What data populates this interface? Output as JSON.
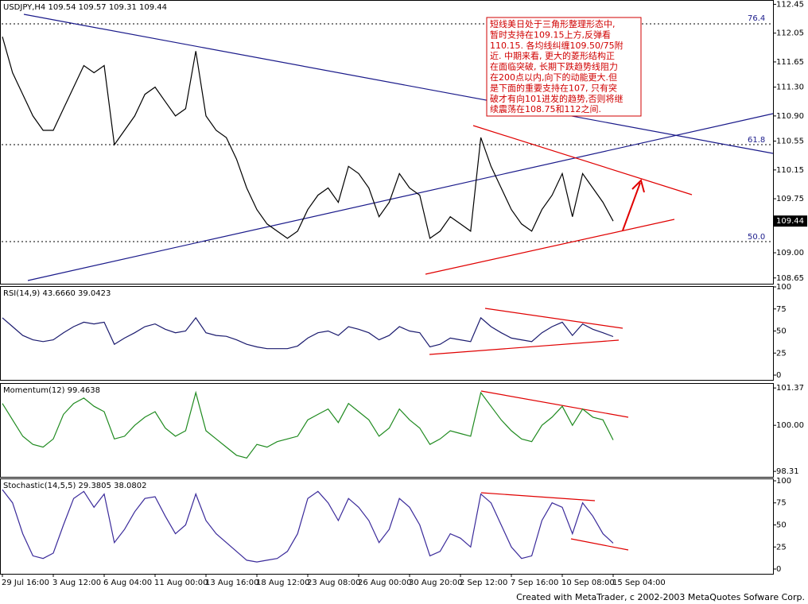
{
  "chart_data": [
    {
      "type": "line",
      "label": "USDJPY,H4  109.54 109.57 109.31 109.44",
      "color": "#000000",
      "ylim": [
        108.57,
        112.51
      ],
      "yticks": [
        112.45,
        112.05,
        111.65,
        {
          "value": 111.3,
          "label": "111.30"
        },
        {
          "value": 110.9,
          "label": "110.90"
        },
        110.55,
        110.15,
        109.75,
        {
          "value": 109.0,
          "label": "109.00"
        },
        108.65
      ],
      "values": [
        112.0,
        111.5,
        111.2,
        110.9,
        110.7,
        110.7,
        111.0,
        111.3,
        111.6,
        111.5,
        111.6,
        110.5,
        110.7,
        110.9,
        111.2,
        111.3,
        111.1,
        110.9,
        111.0,
        111.8,
        110.9,
        110.7,
        110.6,
        110.3,
        109.9,
        109.6,
        109.4,
        109.3,
        109.2,
        109.3,
        109.6,
        109.8,
        109.9,
        109.7,
        110.2,
        110.1,
        109.9,
        109.5,
        109.7,
        110.1,
        109.9,
        109.8,
        109.2,
        109.3,
        109.5,
        109.4,
        109.3,
        110.6,
        110.2,
        109.9,
        109.6,
        109.4,
        109.3,
        109.6,
        109.8,
        110.1,
        109.5,
        110.1,
        109.9,
        109.7,
        109.44
      ]
    },
    {
      "type": "line",
      "label": "RSI(14,9)  43.6660  39.0423",
      "color": "#1a1a6e",
      "ylim": [
        -5.4,
        100.9
      ],
      "yticks": [
        100,
        75,
        50,
        25,
        0
      ],
      "values": [
        65,
        55,
        45,
        40,
        38,
        40,
        48,
        55,
        60,
        58,
        60,
        35,
        42,
        48,
        55,
        58,
        52,
        48,
        50,
        65,
        48,
        45,
        44,
        40,
        35,
        32,
        30,
        30,
        30,
        33,
        42,
        48,
        50,
        45,
        55,
        52,
        48,
        40,
        45,
        55,
        50,
        48,
        32,
        35,
        42,
        40,
        38,
        65,
        55,
        48,
        42,
        40,
        38,
        48,
        55,
        60,
        45,
        58,
        52,
        48,
        43.666
      ]
    },
    {
      "type": "line",
      "label": "Momentum(12)  99.4638",
      "color": "#1f8a1f",
      "ylim": [
        98.11,
        101.55
      ],
      "yticks": [
        101.37,
        {
          "value": 100,
          "label": "100.00"
        },
        98.31
      ],
      "values": [
        100.8,
        100.2,
        99.6,
        99.3,
        99.2,
        99.5,
        100.4,
        100.8,
        101.0,
        100.7,
        100.5,
        99.5,
        99.6,
        100.0,
        100.3,
        100.5,
        99.9,
        99.6,
        99.8,
        101.2,
        99.8,
        99.5,
        99.2,
        98.9,
        98.8,
        99.3,
        99.2,
        99.4,
        99.5,
        99.6,
        100.2,
        100.4,
        100.6,
        100.1,
        100.8,
        100.5,
        100.2,
        99.6,
        99.9,
        100.6,
        100.2,
        99.9,
        99.3,
        99.5,
        99.8,
        99.7,
        99.6,
        101.2,
        100.7,
        100.2,
        99.8,
        99.5,
        99.4,
        100.0,
        100.3,
        100.7,
        100.0,
        100.6,
        100.3,
        100.2,
        99.4638
      ]
    },
    {
      "type": "line",
      "label": "Stochastic(14,5,5)  29.3805  38.0802",
      "color": "#3a2a9a",
      "ylim": [
        -5.4,
        102.7
      ],
      "yticks": [
        100,
        75,
        50,
        25,
        0
      ],
      "values": [
        90,
        75,
        40,
        15,
        12,
        18,
        50,
        80,
        88,
        70,
        85,
        30,
        45,
        65,
        80,
        82,
        60,
        40,
        50,
        85,
        55,
        40,
        30,
        20,
        10,
        8,
        10,
        12,
        20,
        40,
        80,
        88,
        75,
        55,
        80,
        70,
        55,
        30,
        45,
        80,
        70,
        50,
        15,
        20,
        40,
        35,
        25,
        85,
        75,
        50,
        25,
        12,
        15,
        55,
        75,
        70,
        40,
        75,
        60,
        40,
        29.3805
      ],
      "categories": [
        "29 Jul 16:00",
        null,
        null,
        null,
        null,
        "3 Aug 12:00",
        null,
        null,
        null,
        null,
        "6 Aug 04:00",
        null,
        null,
        null,
        null,
        "11 Aug 00:00",
        null,
        null,
        null,
        null,
        "13 Aug 16:00",
        null,
        null,
        null,
        null,
        "18 Aug 12:00",
        null,
        null,
        null,
        null,
        "23 Aug 08:00",
        null,
        null,
        null,
        null,
        "26 Aug 00:00",
        null,
        null,
        null,
        null,
        "30 Aug 20:00",
        null,
        null,
        null,
        null,
        "2 Sep 12:00",
        null,
        null,
        null,
        null,
        "7 Sep 16:00",
        null,
        null,
        null,
        null,
        "10 Sep 08:00",
        null,
        null,
        null,
        null,
        "15 Sep 04:00"
      ]
    }
  ],
  "fib_levels": [
    "76.4",
    "61.8",
    "50.0"
  ],
  "annotation": [
    "短线美日处于三角形整理形态中,",
    "暂时支持在109.15上方,反弹看",
    "110.15. 各均线纠缠109.50/75附",
    "近. 中期来看, 更大的菱形结构正",
    "在面临突破, 长期下跌趋势线阻力",
    "在200点以内,向下的动能更大.但",
    "是下面的重要支持在107, 只有突",
    "破才有向101进发的趋势,否则将继",
    "续震荡在108.75和112之间."
  ],
  "footer": "Created with MetaTrader, c 2002-2003 MetaQuotes Sofware Corp."
}
